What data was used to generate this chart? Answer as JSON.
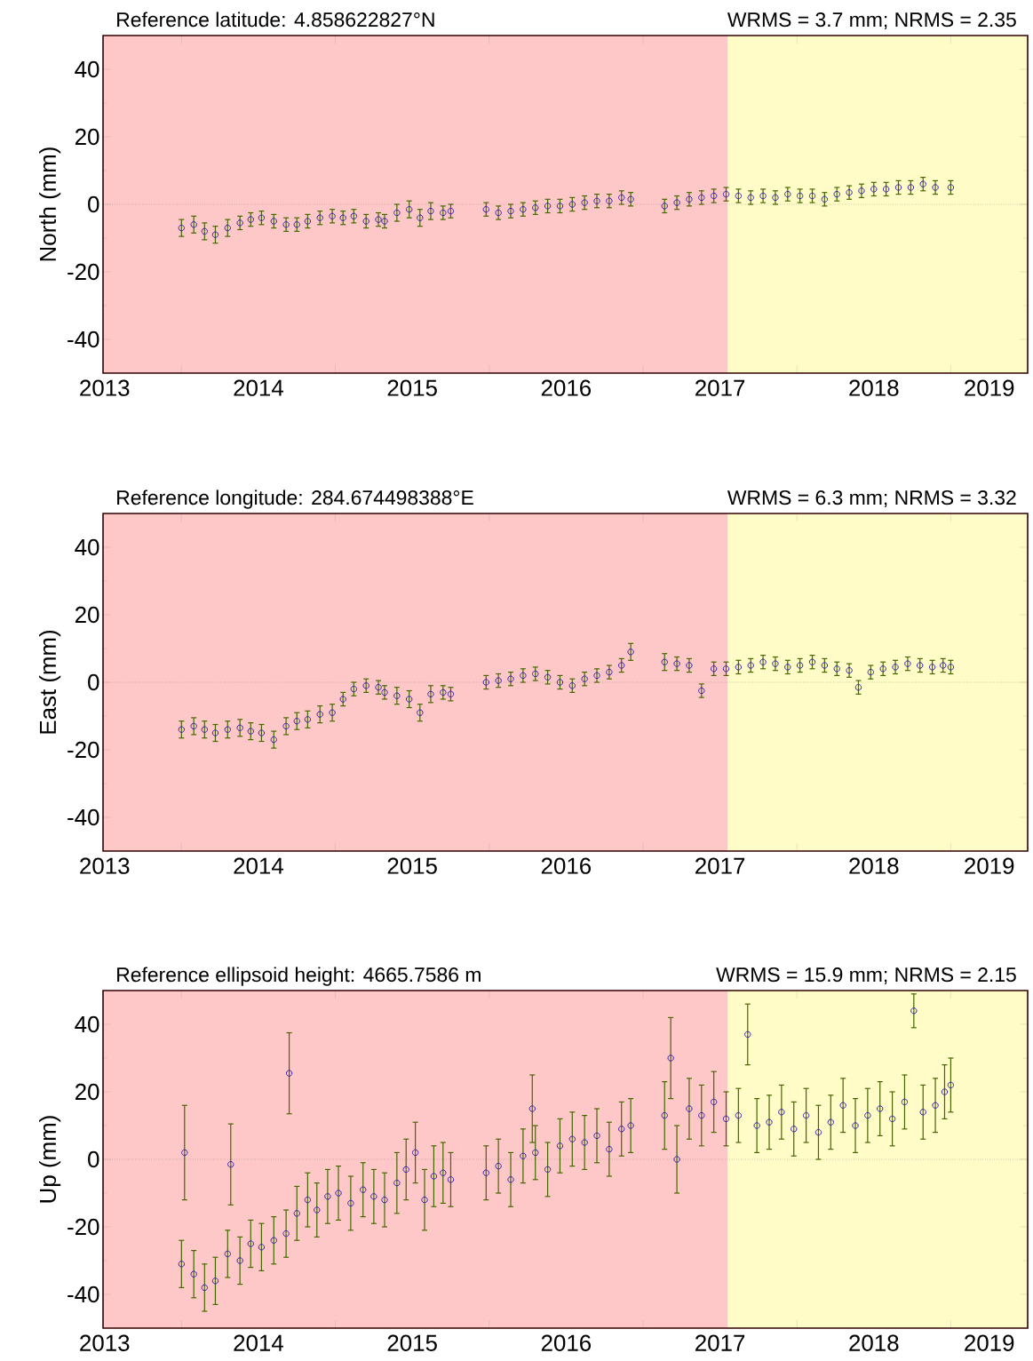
{
  "chart_data": [
    {
      "type": "scatter",
      "title": "Reference latitude: 4.858622827°N",
      "subtitle": "WRMS = 3.7 mm; NRMS = 2.35",
      "ylabel": "North (mm)",
      "marker": "circle",
      "xlim": [
        2013.49,
        2019.5
      ],
      "ylim": [
        -50,
        50
      ],
      "yticks": [
        -40,
        -20,
        0,
        20,
        40
      ],
      "xticks": [
        {
          "value": 2014,
          "label": null
        },
        {
          "value": 2015,
          "label": null
        },
        {
          "value": 2016,
          "label": null
        },
        {
          "value": 2017,
          "label": null
        },
        {
          "value": 2018,
          "label": null
        },
        {
          "value": 2019,
          "label": null
        },
        {
          "value": 2013.5,
          "label": "2013"
        },
        {
          "value": 2014.5,
          "label": "2014"
        },
        {
          "value": 2015.5,
          "label": "2015"
        },
        {
          "value": 2016.5,
          "label": "2016"
        },
        {
          "value": 2017.5,
          "label": "2017"
        },
        {
          "value": 2018.5,
          "label": "2018"
        },
        {
          "value": 2019.25,
          "label": "2019"
        }
      ],
      "bands": [
        {
          "axis": "x",
          "from": 2013.49,
          "to": 2017.55,
          "label": null,
          "color": "#ffc8c8"
        },
        {
          "axis": "x",
          "from": 2017.55,
          "to": 2019.5,
          "label": null,
          "color": "#fffcc8"
        }
      ],
      "ref_lines": [
        {
          "axis": "y",
          "value": 0,
          "label": null,
          "color": "#777777",
          "line_style": "dotted"
        }
      ],
      "series": [
        {
          "color": "#3a22b0",
          "x": [
            2014.0,
            2014.08,
            2014.15,
            2014.22,
            2014.3,
            2014.38,
            2014.45,
            2014.52,
            2014.6,
            2014.68,
            2014.75,
            2014.82,
            2014.9,
            2014.98,
            2015.05,
            2015.12,
            2015.2,
            2015.28,
            2015.32,
            2015.4,
            2015.48,
            2015.55,
            2015.62,
            2015.7,
            2015.75,
            2015.98,
            2016.06,
            2016.14,
            2016.22,
            2016.3,
            2016.38,
            2016.46,
            2016.54,
            2016.62,
            2016.7,
            2016.78,
            2016.86,
            2016.92,
            2017.14,
            2017.22,
            2017.3,
            2017.38,
            2017.46,
            2017.54,
            2017.62,
            2017.7,
            2017.78,
            2017.86,
            2017.94,
            2018.02,
            2018.1,
            2018.18,
            2018.26,
            2018.34,
            2018.42,
            2018.5,
            2018.58,
            2018.66,
            2018.74,
            2018.82,
            2018.9,
            2019.0
          ],
          "values": [
            -7,
            -6,
            -8,
            -9,
            -7,
            -5.5,
            -4.5,
            -4,
            -5,
            -6,
            -6,
            -5,
            -4,
            -3.5,
            -4,
            -3.5,
            -5,
            -4.5,
            -5,
            -2.5,
            -1.5,
            -4,
            -2,
            -2.5,
            -2,
            -1.5,
            -2.5,
            -2,
            -1.5,
            -1,
            -0.5,
            -0.5,
            0,
            0.5,
            1,
            1,
            2,
            1.5,
            -0.5,
            0.5,
            1.5,
            2,
            2.5,
            3,
            2.5,
            2,
            2.5,
            2,
            3,
            2.5,
            2.5,
            1.5,
            3,
            3.5,
            4,
            4.5,
            4.5,
            5,
            5,
            6,
            5,
            5
          ],
          "errors": [
            2.5,
            2.5,
            2.5,
            2.5,
            2.5,
            2,
            2,
            2,
            2,
            2,
            2,
            2,
            2,
            2,
            2,
            2,
            2,
            2,
            2,
            2.5,
            2.5,
            2.5,
            2.5,
            2,
            2,
            2,
            2,
            2,
            2,
            2,
            2,
            2,
            2,
            2,
            2,
            2,
            2,
            2,
            2,
            2,
            2,
            2,
            2,
            2,
            2,
            2,
            2,
            2,
            2,
            2,
            2,
            2,
            2,
            2,
            2,
            2,
            2,
            2,
            2,
            2,
            2,
            2
          ]
        }
      ]
    },
    {
      "type": "scatter",
      "title": "Reference longitude: 284.674498388°E",
      "subtitle": "WRMS = 6.3 mm; NRMS = 3.32",
      "ylabel": "East (mm)",
      "marker": "circle",
      "xlim": [
        2013.49,
        2019.5
      ],
      "ylim": [
        -50,
        50
      ],
      "yticks": [
        -40,
        -20,
        0,
        20,
        40
      ],
      "xticks": [
        {
          "value": 2014,
          "label": null
        },
        {
          "value": 2015,
          "label": null
        },
        {
          "value": 2016,
          "label": null
        },
        {
          "value": 2017,
          "label": null
        },
        {
          "value": 2018,
          "label": null
        },
        {
          "value": 2019,
          "label": null
        },
        {
          "value": 2013.5,
          "label": "2013"
        },
        {
          "value": 2014.5,
          "label": "2014"
        },
        {
          "value": 2015.5,
          "label": "2015"
        },
        {
          "value": 2016.5,
          "label": "2016"
        },
        {
          "value": 2017.5,
          "label": "2017"
        },
        {
          "value": 2018.5,
          "label": "2018"
        },
        {
          "value": 2019.25,
          "label": "2019"
        }
      ],
      "bands": [
        {
          "axis": "x",
          "from": 2013.49,
          "to": 2017.55,
          "label": null,
          "color": "#ffc8c8"
        },
        {
          "axis": "x",
          "from": 2017.55,
          "to": 2019.5,
          "label": null,
          "color": "#fffcc8"
        }
      ],
      "ref_lines": [
        {
          "axis": "y",
          "value": 0,
          "label": null,
          "color": "#777777",
          "line_style": "dotted"
        }
      ],
      "series": [
        {
          "color": "#3a22b0",
          "x": [
            2014.0,
            2014.08,
            2014.15,
            2014.22,
            2014.3,
            2014.38,
            2014.45,
            2014.52,
            2014.6,
            2014.68,
            2014.75,
            2014.82,
            2014.9,
            2014.98,
            2015.05,
            2015.12,
            2015.2,
            2015.28,
            2015.32,
            2015.4,
            2015.48,
            2015.55,
            2015.62,
            2015.7,
            2015.75,
            2015.98,
            2016.06,
            2016.14,
            2016.22,
            2016.3,
            2016.38,
            2016.46,
            2016.54,
            2016.62,
            2016.7,
            2016.78,
            2016.86,
            2016.92,
            2017.14,
            2017.22,
            2017.3,
            2017.38,
            2017.46,
            2017.54,
            2017.62,
            2017.7,
            2017.78,
            2017.86,
            2017.94,
            2018.02,
            2018.1,
            2018.18,
            2018.26,
            2018.34,
            2018.4,
            2018.48,
            2018.56,
            2018.64,
            2018.72,
            2018.8,
            2018.88,
            2018.95,
            2019.0
          ],
          "values": [
            -14,
            -13,
            -14,
            -15,
            -14,
            -13.5,
            -14.5,
            -15,
            -17,
            -13,
            -11.5,
            -11,
            -9.5,
            -9,
            -5,
            -2,
            -1,
            -1.5,
            -3,
            -4,
            -5,
            -9,
            -3.5,
            -3,
            -3.5,
            0,
            0.5,
            1,
            2,
            2.5,
            1.5,
            0,
            -1,
            1,
            2,
            3,
            5,
            9,
            6,
            5.5,
            5,
            -2.5,
            4,
            4,
            4.5,
            5,
            6,
            5.5,
            4.5,
            5,
            6,
            5,
            4,
            3.5,
            -1.5,
            3,
            4,
            4.5,
            5.5,
            5,
            4.5,
            5,
            4.5
          ],
          "errors": [
            2.5,
            2.5,
            2.5,
            2.5,
            2.5,
            2.5,
            2.5,
            2.5,
            2.5,
            2.5,
            2.5,
            2.5,
            2.5,
            2.5,
            2,
            2,
            2,
            2,
            2,
            2.5,
            2.5,
            2.5,
            2.5,
            2,
            2,
            2,
            2,
            2,
            2,
            2,
            2,
            2,
            2,
            2,
            2,
            2,
            2,
            2.5,
            2.5,
            2,
            2,
            2,
            2,
            2,
            2,
            2,
            2,
            2,
            2,
            2,
            2,
            2,
            2,
            2,
            2,
            2,
            2,
            2,
            2,
            2,
            2,
            2,
            2
          ]
        }
      ]
    },
    {
      "type": "scatter",
      "title": "Reference ellipsoid height: 4665.7586 m",
      "subtitle": "WRMS = 15.9 mm; NRMS = 2.15",
      "ylabel": "Up (mm)",
      "marker": "circle",
      "xlim": [
        2013.49,
        2019.5
      ],
      "ylim": [
        -50,
        50
      ],
      "yticks": [
        -40,
        -20,
        0,
        20,
        40
      ],
      "xticks": [
        {
          "value": 2014,
          "label": null
        },
        {
          "value": 2015,
          "label": null
        },
        {
          "value": 2016,
          "label": null
        },
        {
          "value": 2017,
          "label": null
        },
        {
          "value": 2018,
          "label": null
        },
        {
          "value": 2019,
          "label": null
        },
        {
          "value": 2013.5,
          "label": "2013"
        },
        {
          "value": 2014.5,
          "label": "2014"
        },
        {
          "value": 2015.5,
          "label": "2015"
        },
        {
          "value": 2016.5,
          "label": "2016"
        },
        {
          "value": 2017.5,
          "label": "2017"
        },
        {
          "value": 2018.5,
          "label": "2018"
        },
        {
          "value": 2019.25,
          "label": "2019"
        }
      ],
      "bands": [
        {
          "axis": "x",
          "from": 2013.49,
          "to": 2017.55,
          "label": null,
          "color": "#ffc8c8"
        },
        {
          "axis": "x",
          "from": 2017.55,
          "to": 2019.5,
          "label": null,
          "color": "#fffcc8"
        }
      ],
      "ref_lines": [
        {
          "axis": "y",
          "value": 0,
          "label": null,
          "color": "#777777",
          "line_style": "dotted"
        }
      ],
      "series": [
        {
          "color": "#3a22b0",
          "x": [
            2014.0,
            2014.02,
            2014.08,
            2014.15,
            2014.22,
            2014.3,
            2014.32,
            2014.38,
            2014.45,
            2014.52,
            2014.6,
            2014.68,
            2014.7,
            2014.75,
            2014.82,
            2014.88,
            2014.95,
            2015.02,
            2015.1,
            2015.18,
            2015.25,
            2015.32,
            2015.4,
            2015.46,
            2015.52,
            2015.58,
            2015.64,
            2015.7,
            2015.75,
            2015.98,
            2016.06,
            2016.14,
            2016.22,
            2016.28,
            2016.3,
            2016.38,
            2016.46,
            2016.54,
            2016.62,
            2016.7,
            2016.78,
            2016.86,
            2016.92,
            2017.14,
            2017.18,
            2017.22,
            2017.3,
            2017.38,
            2017.46,
            2017.54,
            2017.62,
            2017.68,
            2017.74,
            2017.82,
            2017.9,
            2017.98,
            2018.06,
            2018.14,
            2018.22,
            2018.3,
            2018.38,
            2018.46,
            2018.54,
            2018.62,
            2018.7,
            2018.76,
            2018.82,
            2018.9,
            2018.96,
            2019.0
          ],
          "values": [
            -31,
            2,
            -34,
            -38,
            -36,
            -28,
            -1.5,
            -30,
            -25,
            -26,
            -24,
            -22,
            25.5,
            -16,
            -12,
            -15,
            -11,
            -10,
            -13,
            -9,
            -11,
            -12,
            -7,
            -3,
            2,
            -12,
            -5,
            -4,
            -6,
            -4,
            -2,
            -6,
            1,
            15,
            2,
            -3,
            4,
            6,
            5,
            7,
            3,
            9,
            10,
            13,
            30,
            0,
            15,
            13,
            17,
            12,
            13,
            37,
            10,
            11,
            14,
            9,
            13,
            8,
            11,
            16,
            10,
            13,
            15,
            12,
            17,
            44,
            14,
            16,
            20,
            22
          ],
          "errors": [
            7,
            14,
            7,
            7,
            7,
            7,
            12,
            7,
            7,
            7,
            7,
            7,
            12,
            8,
            8,
            8,
            8,
            8,
            8,
            8,
            8,
            8,
            9,
            9,
            9,
            9,
            9,
            9,
            8,
            8,
            8,
            8,
            8,
            10,
            8,
            8,
            8,
            8,
            8,
            8,
            8,
            8,
            8,
            10,
            12,
            10,
            9,
            9,
            9,
            8,
            8,
            9,
            8,
            8,
            8,
            8,
            8,
            8,
            8,
            8,
            8,
            8,
            8,
            8,
            8,
            5,
            8,
            8,
            8,
            8
          ]
        }
      ]
    }
  ]
}
